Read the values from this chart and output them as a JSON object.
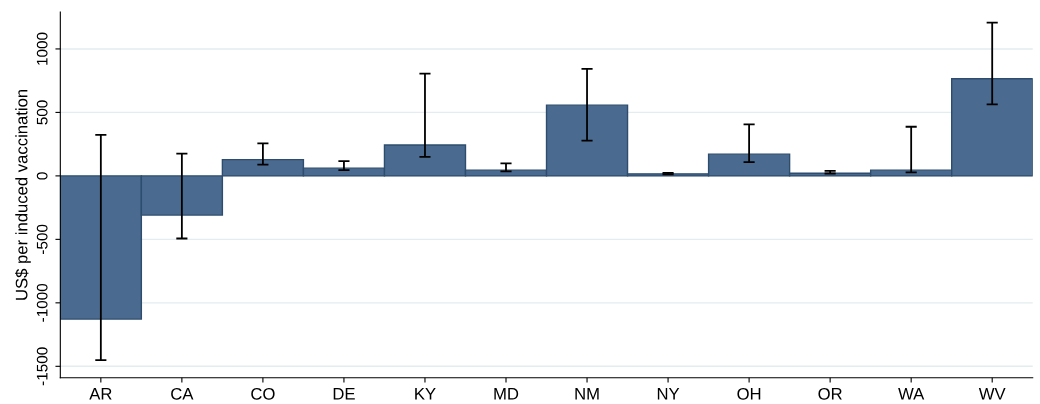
{
  "chart_data": {
    "type": "bar",
    "ylabel": "US$ per induced vaccination",
    "categories": [
      "AR",
      "CA",
      "CO",
      "DE",
      "KY",
      "MD",
      "NM",
      "NY",
      "OH",
      "OR",
      "WA",
      "WV"
    ],
    "values": [
      -1128,
      -309,
      128,
      61,
      243,
      45,
      557,
      16,
      171,
      21,
      45,
      765
    ],
    "errors": [
      [
        -1451,
        323
      ],
      [
        -493,
        176
      ],
      [
        88,
        256
      ],
      [
        45,
        117
      ],
      [
        149,
        805
      ],
      [
        35,
        99
      ],
      [
        277,
        843
      ],
      [
        13,
        24
      ],
      [
        109,
        405
      ],
      [
        19,
        40
      ],
      [
        27,
        387
      ],
      [
        563,
        1208
      ]
    ],
    "color": "#4a6b8f",
    "ylim": [
      -1590,
      1290
    ],
    "yticks": [
      -1500,
      -1000,
      -500,
      0,
      500,
      1000
    ],
    "grid": "y"
  }
}
